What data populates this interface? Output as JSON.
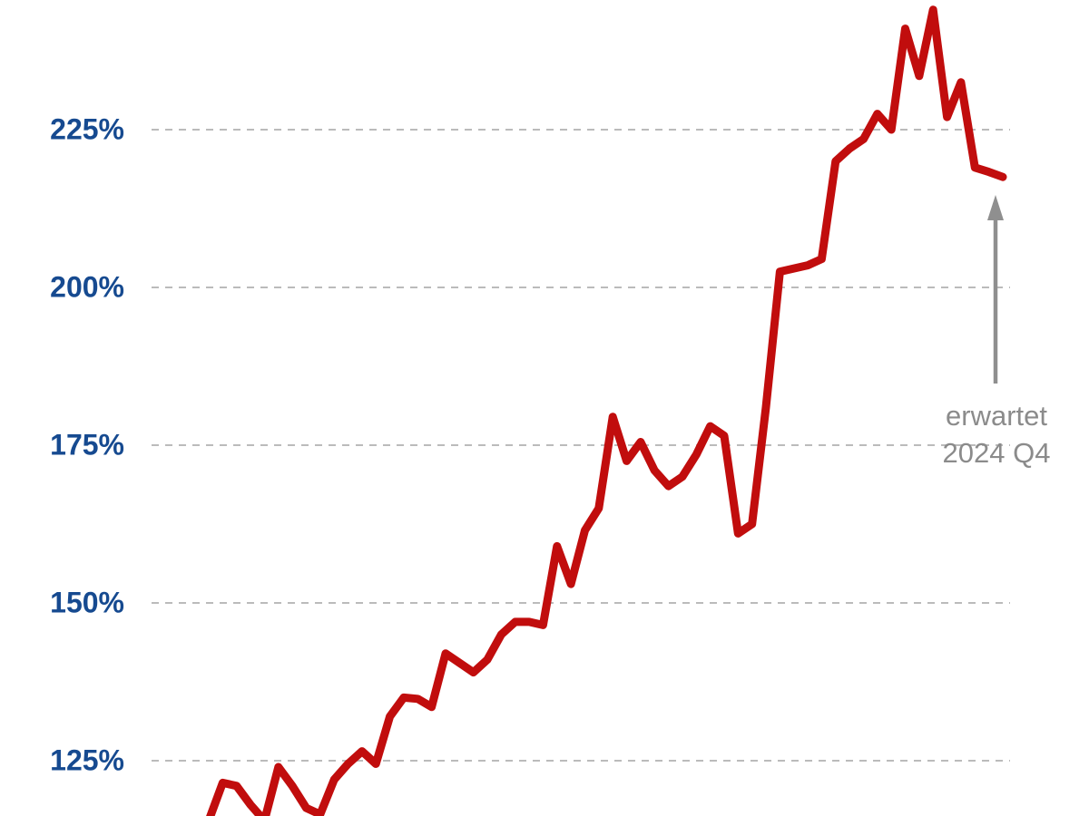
{
  "chart_data": {
    "type": "line",
    "title": "",
    "unit": "%",
    "legend": "none",
    "grid": "horizontal-dashed",
    "y_axis": {
      "tick_labels": [
        "225%",
        "200%",
        "175%",
        "150%",
        "125%"
      ],
      "tick_values": [
        225,
        200,
        175,
        150,
        125
      ],
      "visible_range": [
        116,
        245.5
      ]
    },
    "series": [
      {
        "name": "index-line",
        "color": "#c10d0d",
        "values": [
          115.5,
          121.5,
          121,
          118,
          115.5,
          124,
          121,
          117.5,
          116.5,
          122,
          124.5,
          126.5,
          124.5,
          132,
          135,
          134.8,
          133.5,
          142,
          140.5,
          139,
          141,
          145,
          147,
          147,
          146.5,
          159,
          153,
          161.5,
          165,
          179.5,
          172.5,
          175.5,
          171,
          168.5,
          170,
          173.5,
          178,
          176.5,
          161,
          162.5,
          181,
          202.5,
          203,
          203.5,
          204.5,
          220,
          222,
          223.5,
          227.5,
          225,
          241,
          233.5,
          244,
          227,
          232.5,
          219,
          218.3,
          217.5
        ]
      }
    ],
    "annotation": {
      "line1": "erwartet",
      "line2": "2024 Q4",
      "points_to": "last-data-point"
    }
  },
  "colors": {
    "background": "#ffffff",
    "line": "#c10d0d",
    "axis_label": "#164a90",
    "gridline": "#bbbbbb",
    "annotation_text": "#8b8b8b",
    "arrow": "#8f8f8f"
  }
}
